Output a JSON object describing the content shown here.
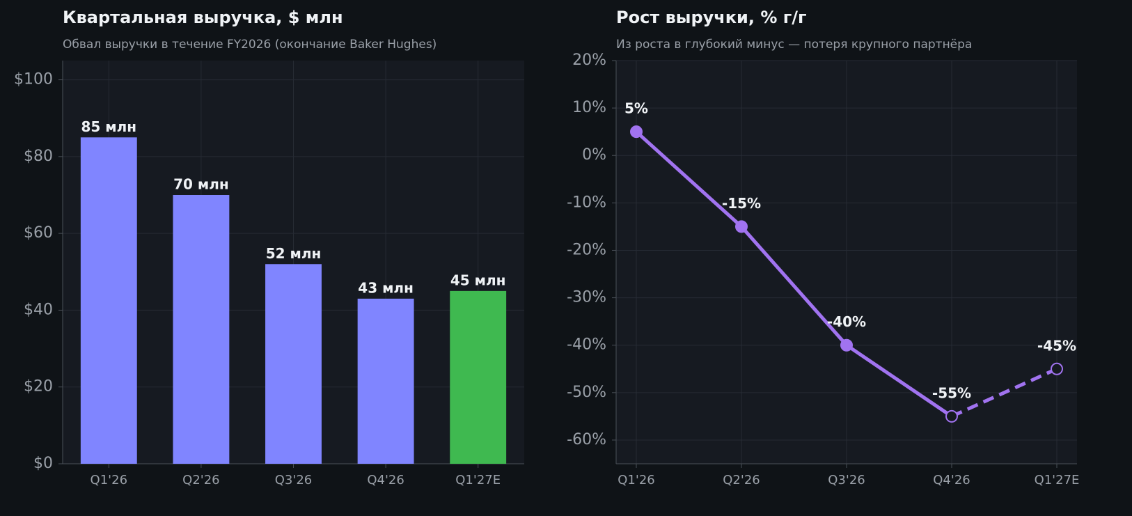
{
  "chart_data": [
    {
      "type": "bar",
      "title": "Квартальная выручка, $ млн",
      "subtitle": "Обвал выручки в течение FY2026 (окончание Baker Hughes)",
      "categories": [
        "Q1'26",
        "Q2'26",
        "Q3'26",
        "Q4'26",
        "Q1'27E"
      ],
      "values": [
        85,
        70,
        52,
        43,
        45
      ],
      "value_labels": [
        "85 млн",
        "70 млн",
        "52 млн",
        "43 млн",
        "45 млн"
      ],
      "colors": [
        "#8085ff",
        "#8085ff",
        "#8085ff",
        "#8085ff",
        "#3fb950"
      ],
      "ylim": [
        0,
        105
      ],
      "yticks": [
        {
          "value": 0,
          "label": "$0"
        },
        {
          "value": 20,
          "label": "$20"
        },
        {
          "value": 40,
          "label": "$40"
        },
        {
          "value": 60,
          "label": "$60"
        },
        {
          "value": 80,
          "label": "$80"
        },
        {
          "value": 100,
          "label": "$100"
        }
      ],
      "grid": true
    },
    {
      "type": "line",
      "title": "Рост выручки, % г/г",
      "subtitle": "Из роста в глубокий минус — потеря крупного партнёра",
      "categories": [
        "Q1'26",
        "Q2'26",
        "Q3'26",
        "Q4'26",
        "Q1'27E"
      ],
      "values": [
        5,
        -15,
        -40,
        -55,
        -45
      ],
      "value_labels": [
        "5%",
        "-15%",
        "-40%",
        "-55%",
        "-45%"
      ],
      "color": "#a173f0",
      "dashed_from": 3,
      "ylim": [
        -65,
        20
      ],
      "yticks": [
        {
          "value": -60,
          "label": "-60%"
        },
        {
          "value": -50,
          "label": "-50%"
        },
        {
          "value": -40,
          "label": "-40%"
        },
        {
          "value": -30,
          "label": "-30%"
        },
        {
          "value": -20,
          "label": "-20%"
        },
        {
          "value": -10,
          "label": "-10%"
        },
        {
          "value": 0,
          "label": "0%"
        },
        {
          "value": 10,
          "label": "10%"
        },
        {
          "value": 20,
          "label": "20%"
        }
      ],
      "grid": true
    }
  ]
}
